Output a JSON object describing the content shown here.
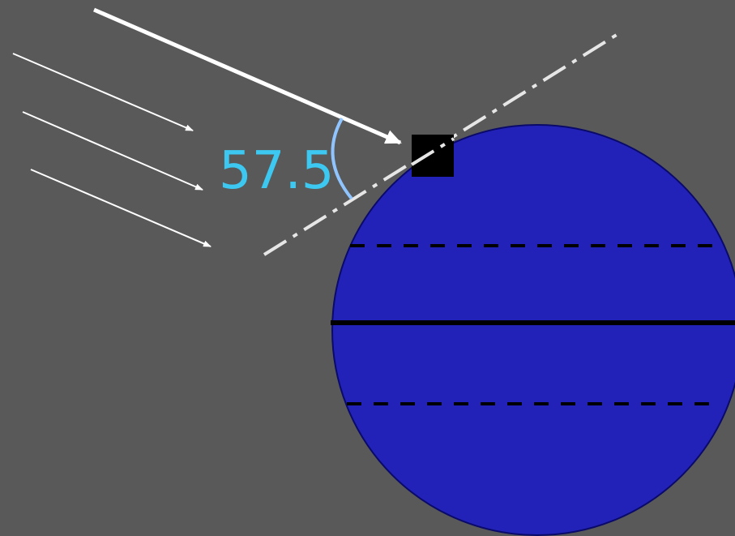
{
  "diagram": {
    "angle_label": "57.5",
    "colors": {
      "background": "#595959",
      "earth_fill": "#2222b8",
      "earth_stroke": "#0a0a6a",
      "sun_rays": "#ffffff",
      "horizon_line": "#e6e6e6",
      "angle_arc": "#8fc4ff",
      "angle_text": "#3cc8f0",
      "observer_marker": "#000000",
      "equator": "#000000",
      "tropics": "#000000"
    },
    "icons": {
      "observer": "black-square",
      "earth": "globe-circle"
    }
  }
}
